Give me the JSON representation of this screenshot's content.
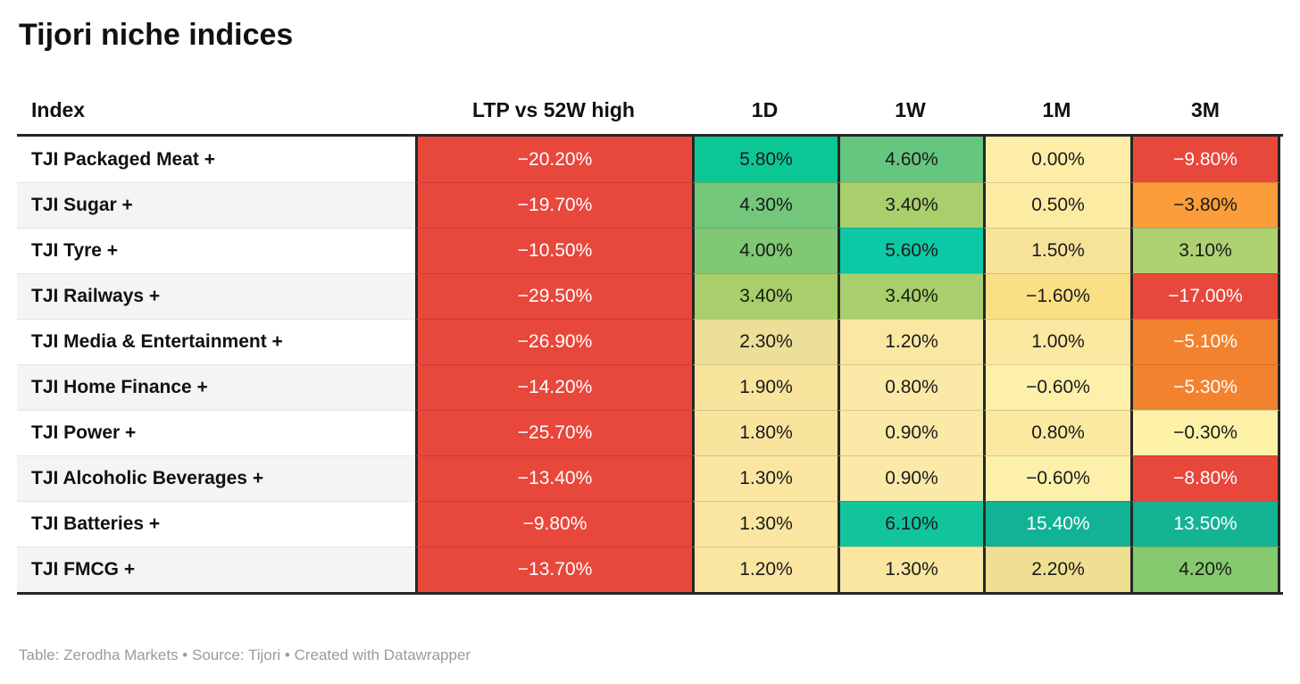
{
  "header": {
    "title": "Tijori niche indices"
  },
  "footer": {
    "text": "Table: Zerodha Markets • Source: Tijori • Created with Datawrapper"
  },
  "styles": {
    "border_dark": "#262626",
    "row_alt_bg": "#f4f4f4",
    "negative_red": "#e8473c",
    "orange_deep": "#f3822e",
    "orange_light": "#fb9d3a",
    "teal_bright": "#0bc795",
    "teal_dark": "#12b295",
    "footer_gray": "#9b9b9b"
  },
  "chart_data": {
    "type": "table",
    "title": "Tijori niche indices",
    "columns": [
      "Index",
      "LTP vs 52W high",
      "1D",
      "1W",
      "1M",
      "3M"
    ],
    "rows": [
      {
        "index": "TJI Packaged Meat +",
        "values": [
          {
            "text": "−20.20%",
            "bg": "#e8473c",
            "fg": "#ffffff"
          },
          {
            "text": "5.80%",
            "bg": "#0bc795",
            "fg": "#1a1a1a"
          },
          {
            "text": "4.60%",
            "bg": "#65c680",
            "fg": "#1a1a1a"
          },
          {
            "text": "0.00%",
            "bg": "#fdeda6",
            "fg": "#1a1a1a"
          },
          {
            "text": "−9.80%",
            "bg": "#e8473c",
            "fg": "#ffffff"
          }
        ]
      },
      {
        "index": "TJI Sugar +",
        "values": [
          {
            "text": "−19.70%",
            "bg": "#e8473c",
            "fg": "#ffffff"
          },
          {
            "text": "4.30%",
            "bg": "#73c77b",
            "fg": "#1a1a1a"
          },
          {
            "text": "3.40%",
            "bg": "#a8cf6b",
            "fg": "#1a1a1a"
          },
          {
            "text": "0.50%",
            "bg": "#fceba2",
            "fg": "#1a1a1a"
          },
          {
            "text": "−3.80%",
            "bg": "#fb9d3a",
            "fg": "#1a1a1a"
          }
        ]
      },
      {
        "index": "TJI Tyre +",
        "values": [
          {
            "text": "−10.50%",
            "bg": "#e8473c",
            "fg": "#ffffff"
          },
          {
            "text": "4.00%",
            "bg": "#80c873",
            "fg": "#1a1a1a"
          },
          {
            "text": "5.60%",
            "bg": "#0bc9a4",
            "fg": "#1a1a1a"
          },
          {
            "text": "1.50%",
            "bg": "#f7e29a",
            "fg": "#1a1a1a"
          },
          {
            "text": "3.10%",
            "bg": "#aed172",
            "fg": "#1a1a1a"
          }
        ]
      },
      {
        "index": "TJI Railways +",
        "values": [
          {
            "text": "−29.50%",
            "bg": "#e8473c",
            "fg": "#ffffff"
          },
          {
            "text": "3.40%",
            "bg": "#a8cf6b",
            "fg": "#1a1a1a"
          },
          {
            "text": "3.40%",
            "bg": "#a8cf6b",
            "fg": "#1a1a1a"
          },
          {
            "text": "−1.60%",
            "bg": "#fbdf85",
            "fg": "#1a1a1a"
          },
          {
            "text": "−17.00%",
            "bg": "#e8473c",
            "fg": "#ffffff"
          }
        ]
      },
      {
        "index": "TJI Media & Entertainment +",
        "values": [
          {
            "text": "−26.90%",
            "bg": "#e8473c",
            "fg": "#ffffff"
          },
          {
            "text": "2.30%",
            "bg": "#ecdf97",
            "fg": "#1a1a1a"
          },
          {
            "text": "1.20%",
            "bg": "#fae7a2",
            "fg": "#1a1a1a"
          },
          {
            "text": "1.00%",
            "bg": "#fbe8a1",
            "fg": "#1a1a1a"
          },
          {
            "text": "−5.10%",
            "bg": "#f3822e",
            "fg": "#ffffff"
          }
        ]
      },
      {
        "index": "TJI Home Finance +",
        "values": [
          {
            "text": "−14.20%",
            "bg": "#e8473c",
            "fg": "#ffffff"
          },
          {
            "text": "1.90%",
            "bg": "#f9e49e",
            "fg": "#1a1a1a"
          },
          {
            "text": "0.80%",
            "bg": "#fbe9a8",
            "fg": "#1a1a1a"
          },
          {
            "text": "−0.60%",
            "bg": "#fdf0ab",
            "fg": "#1a1a1a"
          },
          {
            "text": "−5.30%",
            "bg": "#f3822e",
            "fg": "#ffffff"
          }
        ]
      },
      {
        "index": "TJI Power +",
        "values": [
          {
            "text": "−25.70%",
            "bg": "#e8473c",
            "fg": "#ffffff"
          },
          {
            "text": "1.80%",
            "bg": "#f9e49e",
            "fg": "#1a1a1a"
          },
          {
            "text": "0.90%",
            "bg": "#fbe9a8",
            "fg": "#1a1a1a"
          },
          {
            "text": "0.80%",
            "bg": "#fbe8a1",
            "fg": "#1a1a1a"
          },
          {
            "text": "−0.30%",
            "bg": "#fdf2a7",
            "fg": "#1a1a1a"
          }
        ]
      },
      {
        "index": "TJI Alcoholic Beverages +",
        "values": [
          {
            "text": "−13.40%",
            "bg": "#e8473c",
            "fg": "#ffffff"
          },
          {
            "text": "1.30%",
            "bg": "#fae6a1",
            "fg": "#1a1a1a"
          },
          {
            "text": "0.90%",
            "bg": "#fbe9a8",
            "fg": "#1a1a1a"
          },
          {
            "text": "−0.60%",
            "bg": "#fdf0ab",
            "fg": "#1a1a1a"
          },
          {
            "text": "−8.80%",
            "bg": "#e8473c",
            "fg": "#ffffff"
          }
        ]
      },
      {
        "index": "TJI Batteries +",
        "values": [
          {
            "text": "−9.80%",
            "bg": "#e8473c",
            "fg": "#ffffff"
          },
          {
            "text": "1.30%",
            "bg": "#fae6a1",
            "fg": "#1a1a1a"
          },
          {
            "text": "6.10%",
            "bg": "#12c49c",
            "fg": "#1a1a1a"
          },
          {
            "text": "15.40%",
            "bg": "#12b295",
            "fg": "#ffffff"
          },
          {
            "text": "13.50%",
            "bg": "#14b394",
            "fg": "#ffffff"
          }
        ]
      },
      {
        "index": "TJI FMCG +",
        "values": [
          {
            "text": "−13.70%",
            "bg": "#e8473c",
            "fg": "#ffffff"
          },
          {
            "text": "1.20%",
            "bg": "#fae6a1",
            "fg": "#1a1a1a"
          },
          {
            "text": "1.30%",
            "bg": "#fae6a1",
            "fg": "#1a1a1a"
          },
          {
            "text": "2.20%",
            "bg": "#efdf92",
            "fg": "#1a1a1a"
          },
          {
            "text": "4.20%",
            "bg": "#85ca6f",
            "fg": "#1a1a1a"
          }
        ]
      }
    ]
  }
}
